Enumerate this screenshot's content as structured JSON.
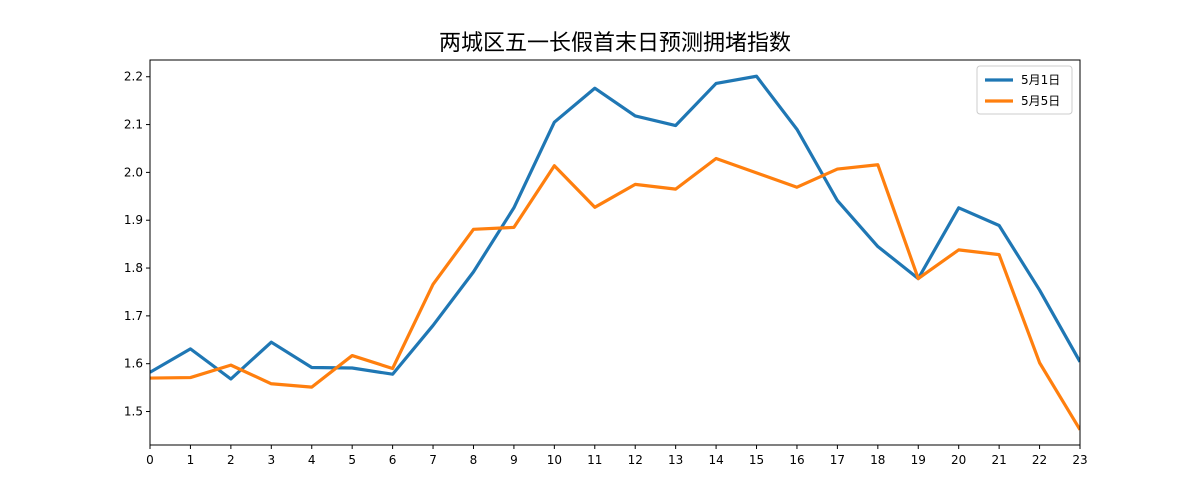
{
  "chart_data": {
    "type": "line",
    "title": "两城区五一长假首末日预测拥堵指数",
    "xlabel": "",
    "ylabel": "",
    "x": [
      0,
      1,
      2,
      3,
      4,
      5,
      6,
      7,
      8,
      9,
      10,
      11,
      12,
      13,
      14,
      15,
      16,
      17,
      18,
      19,
      20,
      21,
      22,
      23
    ],
    "xlim": [
      0,
      23
    ],
    "ylim": [
      1.43,
      2.235
    ],
    "yticks": [
      1.5,
      1.6,
      1.7,
      1.8,
      1.9,
      2.0,
      2.1,
      2.2
    ],
    "ytick_labels": [
      "1.5",
      "1.6",
      "1.7",
      "1.8",
      "1.9",
      "2.0",
      "2.1",
      "2.2"
    ],
    "grid": false,
    "legend_position": "top-right",
    "series": [
      {
        "name": "5月1日",
        "color": "#1f77b4",
        "values": [
          1.582,
          1.631,
          1.568,
          1.645,
          1.592,
          1.591,
          1.578,
          1.68,
          1.792,
          1.926,
          2.105,
          2.176,
          2.118,
          2.098,
          2.186,
          2.201,
          2.09,
          1.941,
          1.845,
          1.778,
          1.926,
          1.889,
          1.754,
          1.604
        ]
      },
      {
        "name": "5月5日",
        "color": "#ff7f0e",
        "values": [
          1.57,
          1.571,
          1.597,
          1.558,
          1.551,
          1.617,
          1.59,
          1.766,
          1.881,
          1.885,
          2.014,
          1.927,
          1.975,
          1.965,
          2.029,
          1.999,
          1.969,
          2.007,
          2.016,
          1.778,
          1.838,
          1.828,
          1.602,
          1.462
        ]
      }
    ]
  }
}
